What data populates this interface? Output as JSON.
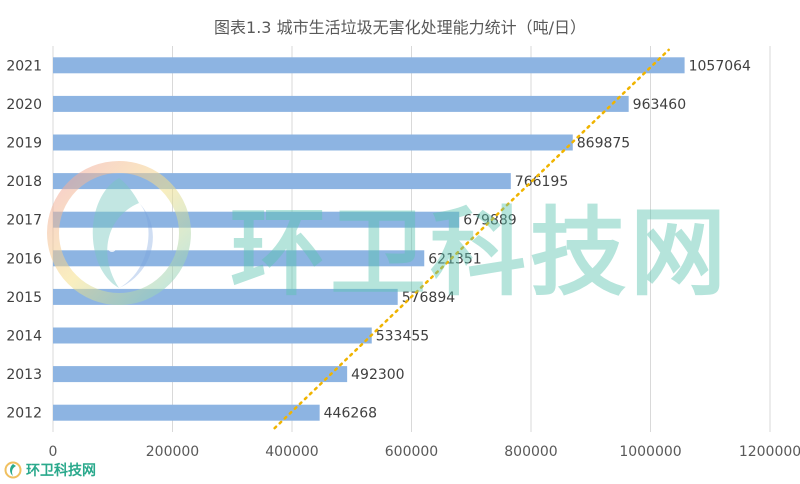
{
  "chart_data": {
    "type": "bar",
    "orientation": "horizontal",
    "title": "图表1.3 城市生活垃圾无害化处理能力统计（吨/日）",
    "categories": [
      "2012",
      "2013",
      "2014",
      "2015",
      "2016",
      "2017",
      "2018",
      "2019",
      "2020",
      "2021"
    ],
    "values": [
      446268,
      492300,
      533455,
      576894,
      621351,
      679889,
      766195,
      869875,
      963460,
      1057064
    ],
    "xlim": [
      0,
      1200000
    ],
    "xticks": [
      0,
      200000,
      400000,
      600000,
      800000,
      1000000,
      1200000
    ],
    "grid": true,
    "trendline": "linear",
    "bar_color": "#8db4e2",
    "trend_color": "#f0b400",
    "data_labels": true
  },
  "watermark": {
    "text": "环卫科技网",
    "small_text": "环卫科技网"
  }
}
